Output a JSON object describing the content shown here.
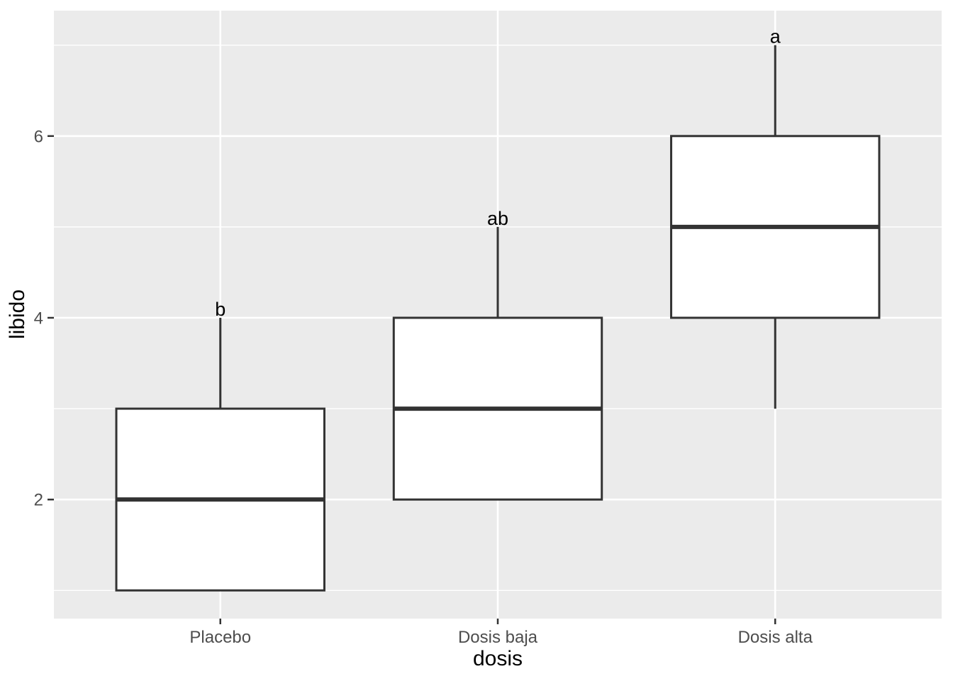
{
  "chart_data": {
    "type": "boxplot",
    "title": "",
    "xlabel": "dosis",
    "ylabel": "libido",
    "categories": [
      "Placebo",
      "Dosis baja",
      "Dosis alta"
    ],
    "series": [
      {
        "name": "Placebo",
        "min": 1,
        "q1": 1,
        "median": 2,
        "q3": 3,
        "max": 4,
        "sig_label": "b"
      },
      {
        "name": "Dosis baja",
        "min": 2,
        "q1": 2,
        "median": 3,
        "q3": 4,
        "max": 5,
        "sig_label": "ab"
      },
      {
        "name": "Dosis alta",
        "min": 3,
        "q1": 4,
        "median": 5,
        "q3": 6,
        "max": 7,
        "sig_label": "a"
      }
    ],
    "ylim": [
      0.69,
      7.38
    ],
    "y_major_ticks": [
      2,
      4,
      6
    ],
    "y_minor_ticks": [
      1,
      3,
      5,
      7
    ],
    "grid": true,
    "legend": "none"
  },
  "colors": {
    "panel_bg": "#EBEBEB",
    "grid": "#FFFFFF",
    "box_fill": "#FFFFFF",
    "box_border": "#333333",
    "tick_mark": "#333333",
    "tick_label": "#4D4D4D",
    "axis_title": "#000000",
    "sig_letter": "#000000"
  }
}
